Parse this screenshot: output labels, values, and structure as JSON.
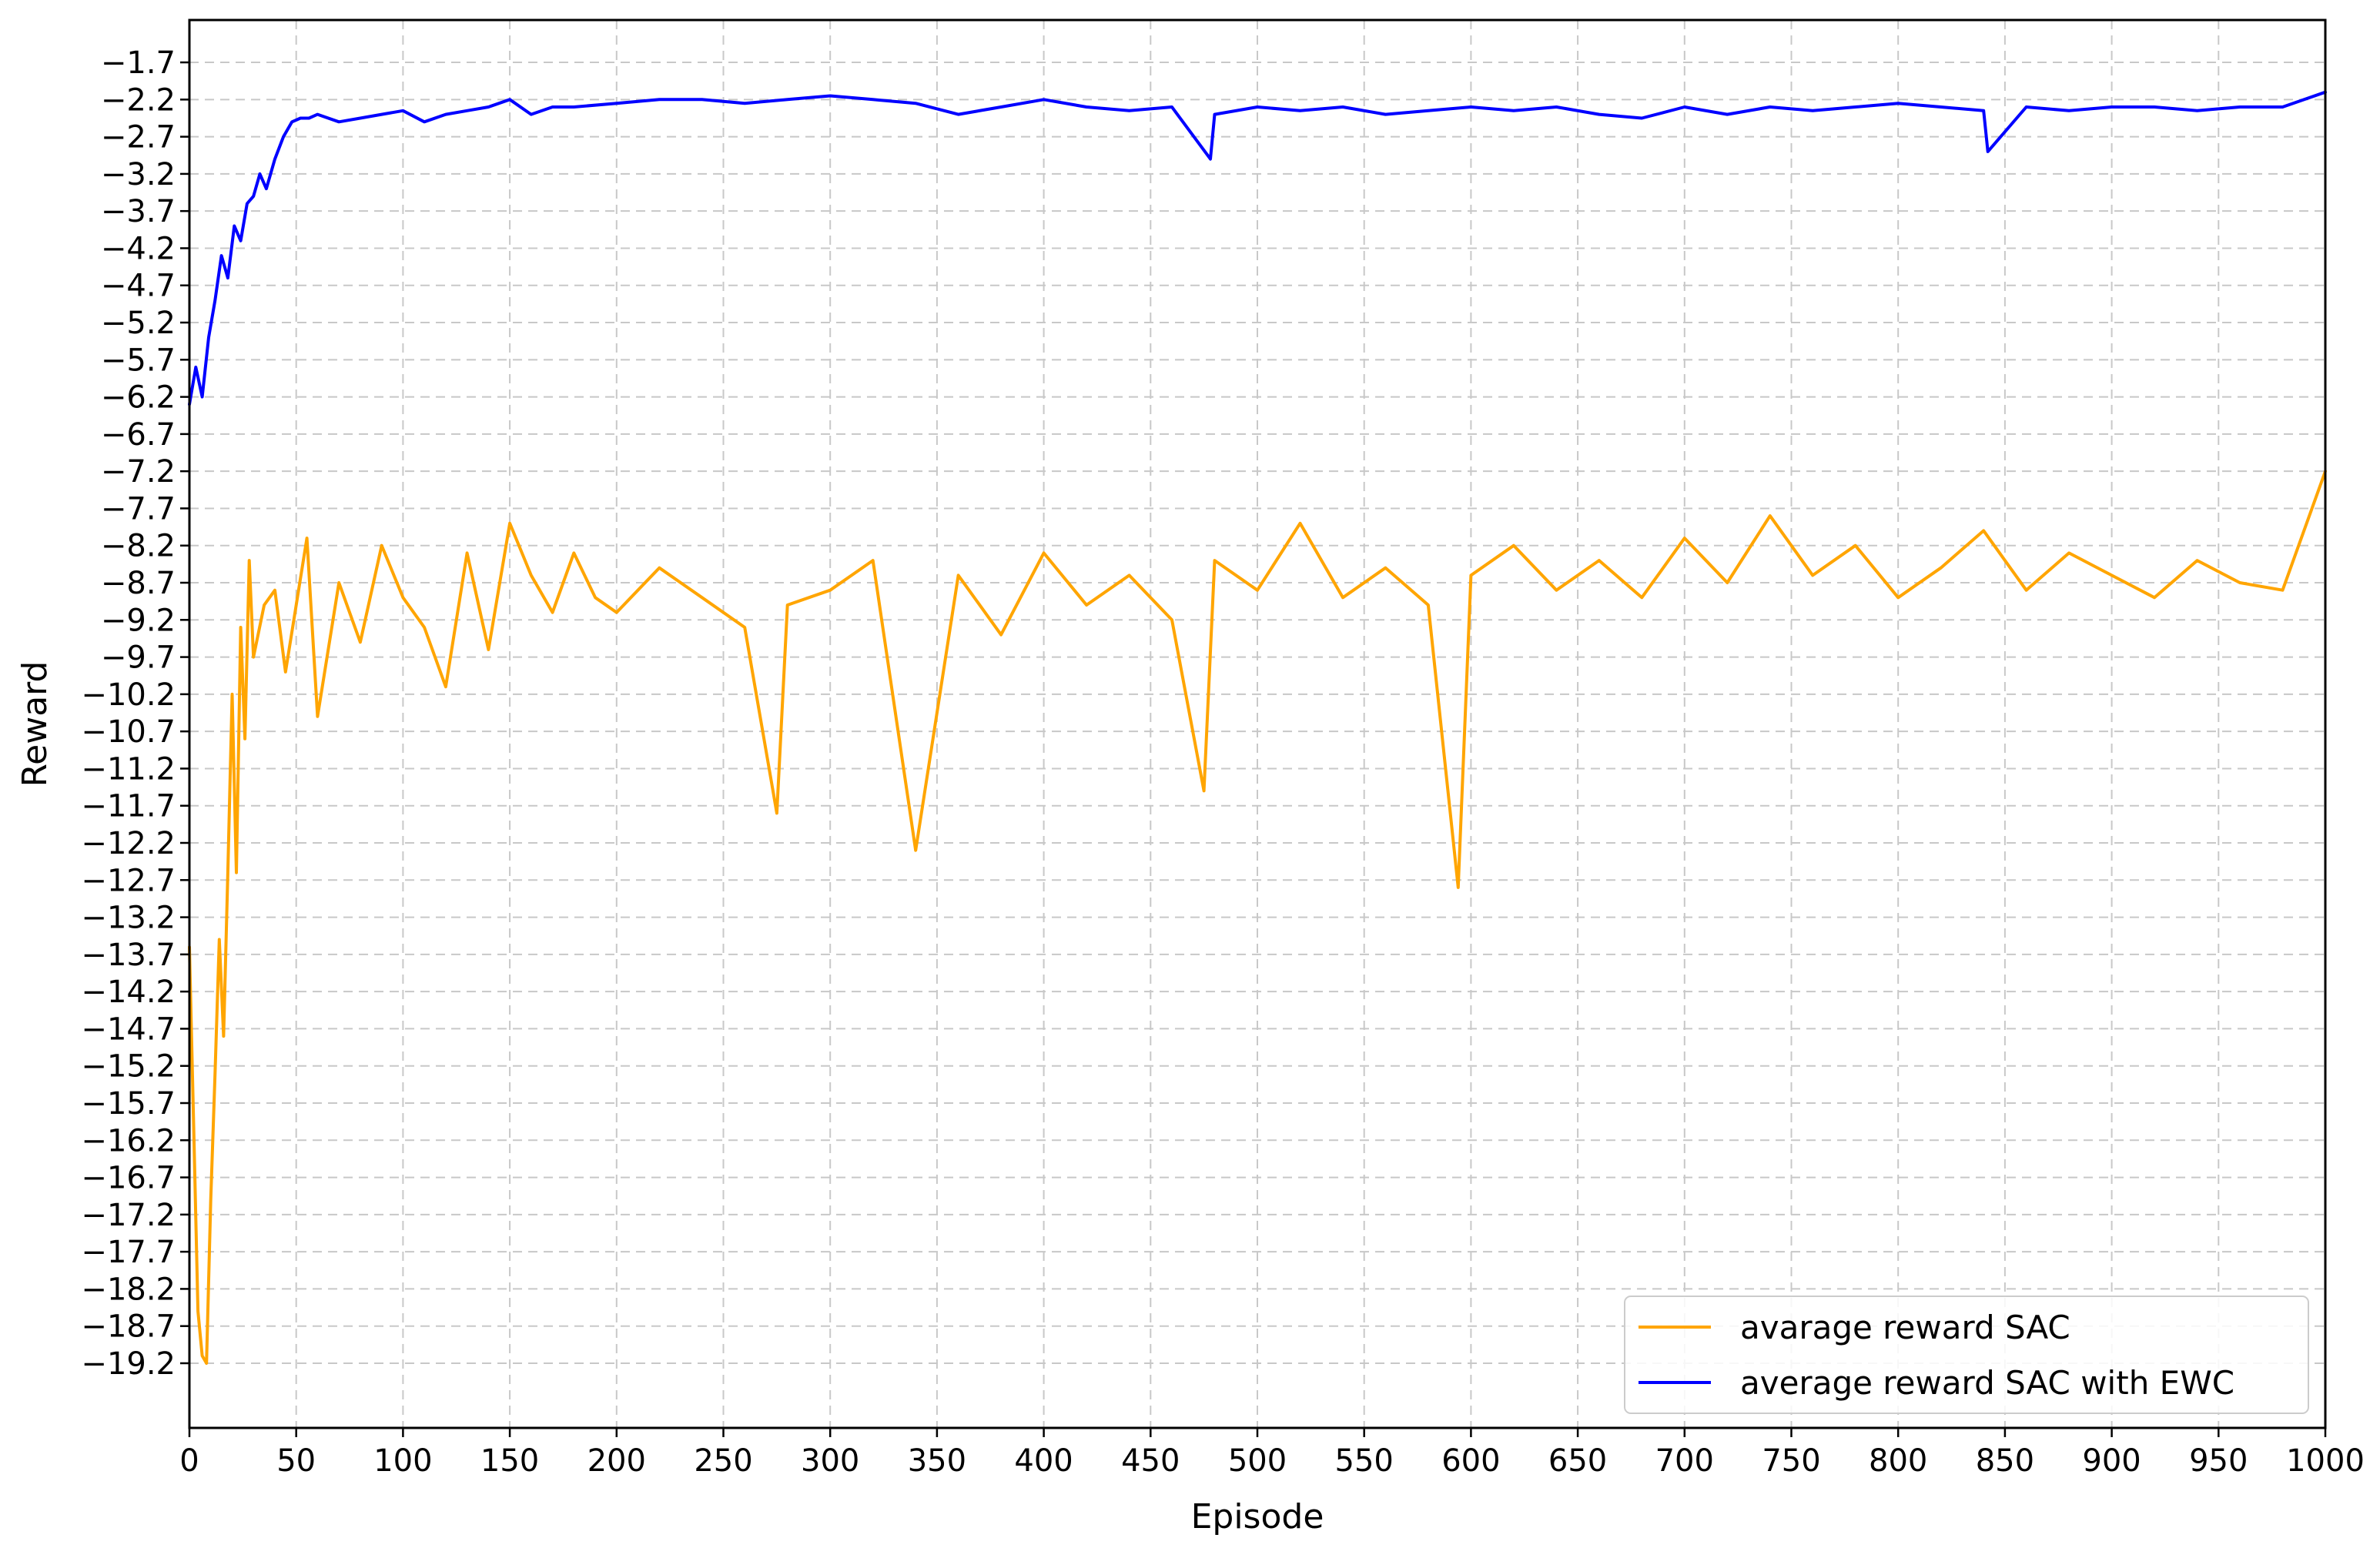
{
  "chart_data": {
    "type": "line",
    "title": "",
    "xlabel": "Episode",
    "ylabel": "Reward",
    "xlim": [
      0,
      1000
    ],
    "ylim": [
      -20.07,
      -1.13
    ],
    "x_ticks": [
      0,
      50,
      100,
      150,
      200,
      250,
      300,
      350,
      400,
      450,
      500,
      550,
      600,
      650,
      700,
      750,
      800,
      850,
      900,
      950,
      1000
    ],
    "y_ticks": [
      -1.7,
      -2.2,
      -2.7,
      -3.2,
      -3.7,
      -4.2,
      -4.7,
      -5.2,
      -5.7,
      -6.2,
      -6.7,
      -7.2,
      -7.7,
      -8.2,
      -8.7,
      -9.2,
      -9.7,
      -10.2,
      -10.7,
      -11.2,
      -11.7,
      -12.2,
      -12.7,
      -13.2,
      -13.7,
      -14.2,
      -14.7,
      -15.2,
      -15.7,
      -16.2,
      -16.7,
      -17.2,
      -17.7,
      -18.2,
      -18.7,
      -19.2
    ],
    "grid": true,
    "grid_style": "dashed",
    "legend_position": "bottom-right",
    "series": [
      {
        "name": "avarage reward SAC",
        "color": "#FFA500",
        "x": [
          0,
          2,
          4,
          6,
          8,
          10,
          12,
          14,
          16,
          18,
          20,
          22,
          24,
          26,
          28,
          30,
          35,
          40,
          45,
          50,
          55,
          60,
          70,
          80,
          90,
          100,
          110,
          120,
          130,
          140,
          150,
          160,
          170,
          180,
          190,
          200,
          220,
          240,
          260,
          275,
          280,
          300,
          320,
          340,
          360,
          380,
          400,
          420,
          440,
          460,
          475,
          480,
          500,
          520,
          540,
          560,
          580,
          594,
          600,
          620,
          640,
          660,
          680,
          700,
          720,
          740,
          760,
          780,
          800,
          820,
          840,
          860,
          880,
          900,
          920,
          940,
          960,
          980,
          1000
        ],
        "y": [
          -13.6,
          -16.0,
          -18.5,
          -19.1,
          -19.2,
          -17.0,
          -15.3,
          -13.5,
          -14.8,
          -12.6,
          -10.2,
          -12.6,
          -9.3,
          -10.8,
          -8.4,
          -9.7,
          -9.0,
          -8.8,
          -9.9,
          -9.0,
          -8.1,
          -10.5,
          -8.7,
          -9.5,
          -8.2,
          -8.9,
          -9.3,
          -10.1,
          -8.3,
          -9.6,
          -7.9,
          -8.6,
          -9.1,
          -8.3,
          -8.9,
          -9.1,
          -8.5,
          -8.9,
          -9.3,
          -11.8,
          -9.0,
          -8.8,
          -8.4,
          -12.3,
          -8.6,
          -9.4,
          -8.3,
          -9.0,
          -8.6,
          -9.2,
          -11.5,
          -8.4,
          -8.8,
          -7.9,
          -8.9,
          -8.5,
          -9.0,
          -12.8,
          -8.6,
          -8.2,
          -8.8,
          -8.4,
          -8.9,
          -8.1,
          -8.7,
          -7.8,
          -8.6,
          -8.2,
          -8.9,
          -8.5,
          -8.0,
          -8.8,
          -8.3,
          -8.6,
          -8.9,
          -8.4,
          -8.7,
          -8.8,
          -7.2
        ]
      },
      {
        "name": "average reward SAC with EWC",
        "color": "#0000FF",
        "x": [
          0,
          3,
          6,
          9,
          12,
          15,
          18,
          21,
          24,
          27,
          30,
          33,
          36,
          40,
          44,
          48,
          52,
          56,
          60,
          70,
          80,
          90,
          100,
          110,
          120,
          130,
          140,
          150,
          160,
          170,
          180,
          200,
          220,
          240,
          260,
          280,
          300,
          320,
          340,
          360,
          380,
          400,
          420,
          440,
          460,
          478,
          480,
          500,
          520,
          540,
          560,
          580,
          600,
          620,
          640,
          660,
          680,
          700,
          720,
          740,
          760,
          780,
          800,
          820,
          840,
          842,
          860,
          880,
          900,
          920,
          940,
          960,
          980,
          1000
        ],
        "y": [
          -6.3,
          -5.8,
          -6.2,
          -5.4,
          -4.9,
          -4.3,
          -4.6,
          -3.9,
          -4.1,
          -3.6,
          -3.5,
          -3.2,
          -3.4,
          -3.0,
          -2.7,
          -2.5,
          -2.45,
          -2.45,
          -2.4,
          -2.5,
          -2.45,
          -2.4,
          -2.35,
          -2.5,
          -2.4,
          -2.35,
          -2.3,
          -2.2,
          -2.4,
          -2.3,
          -2.3,
          -2.25,
          -2.2,
          -2.2,
          -2.25,
          -2.2,
          -2.15,
          -2.2,
          -2.25,
          -2.4,
          -2.3,
          -2.2,
          -2.3,
          -2.35,
          -2.3,
          -3.0,
          -2.4,
          -2.3,
          -2.35,
          -2.3,
          -2.4,
          -2.35,
          -2.3,
          -2.35,
          -2.3,
          -2.4,
          -2.45,
          -2.3,
          -2.4,
          -2.3,
          -2.35,
          -2.3,
          -2.25,
          -2.3,
          -2.35,
          -2.9,
          -2.3,
          -2.35,
          -2.3,
          -2.3,
          -2.35,
          -2.3,
          -2.3,
          -2.1
        ]
      }
    ]
  }
}
